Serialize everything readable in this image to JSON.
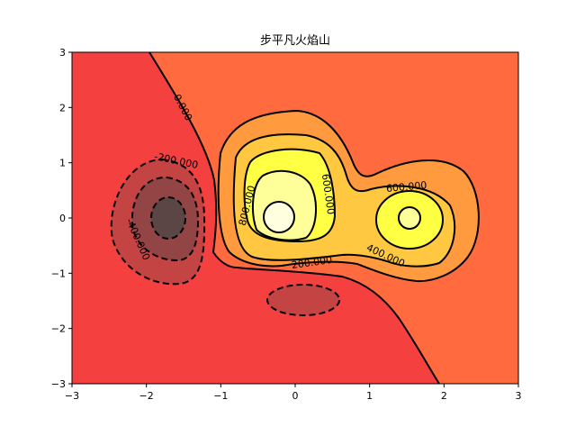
{
  "chart_data": {
    "type": "contour",
    "title": "步平凡火焰山",
    "xlim": [
      -3,
      3
    ],
    "ylim": [
      -3,
      3
    ],
    "xticks": [
      -3,
      -2,
      -1,
      0,
      1,
      2,
      3
    ],
    "yticks": [
      -3,
      -2,
      -1,
      0,
      1,
      2,
      3
    ],
    "xtick_labels": [
      "−3",
      "−2",
      "−1",
      "0",
      "1",
      "2",
      "3"
    ],
    "ytick_labels": [
      "−3",
      "−2",
      "−1",
      "0",
      "1",
      "2",
      "3"
    ],
    "colormap": "hot",
    "levels": [
      -600,
      -400,
      -200,
      0,
      200,
      400,
      600,
      800,
      1000
    ],
    "negative_linestyle": "dashed",
    "contour_labels": [
      "0.000",
      "-200.000",
      "-400.000",
      "800.000",
      "600.000",
      "600.000",
      "200.000",
      "400.000"
    ],
    "fill_colors": {
      "lt_neg400": "#5c4545",
      "neg400_neg200": "#934545",
      "neg200_0": "#c44444",
      "below_0": "#f54040",
      "0_200": "#ff6b3f",
      "200_400": "#ff9a3e",
      "400_600": "#ffc840",
      "600_800": "#ffff44",
      "800_1000": "#ffff99",
      "gt_1000": "#ffffe0"
    },
    "grid": false
  }
}
